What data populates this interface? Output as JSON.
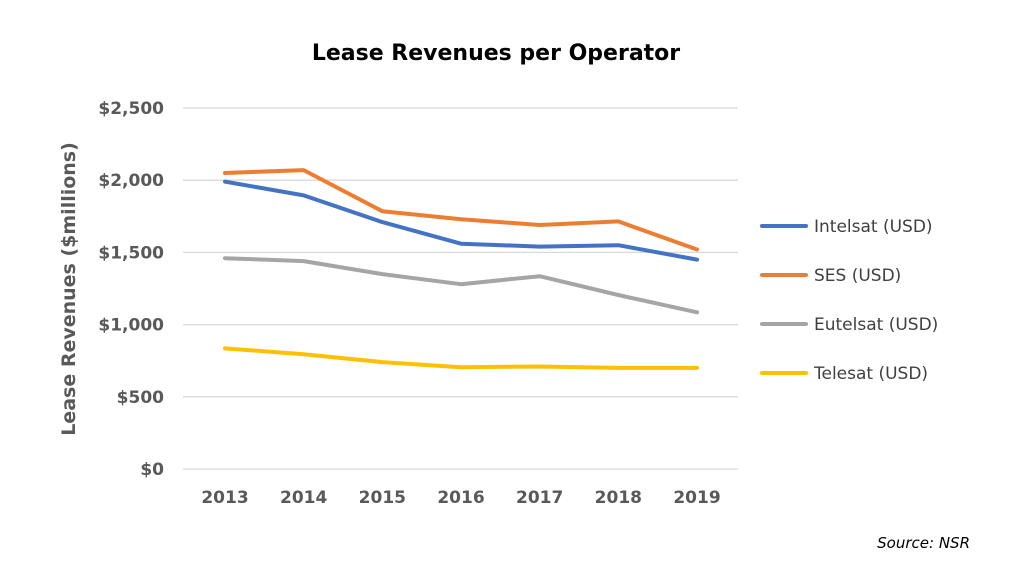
{
  "chart_data": {
    "type": "line",
    "title": "Lease Revenues per Operator",
    "ylabel": "Lease Revenues ($millions)",
    "xlabel": "",
    "x": [
      "2013",
      "2014",
      "2015",
      "2016",
      "2017",
      "2018",
      "2019"
    ],
    "ylim": [
      0,
      2500
    ],
    "yticks": [
      0,
      500,
      1000,
      1500,
      2000,
      2500
    ],
    "ytick_labels": [
      "$0",
      "$500",
      "$1,000",
      "$1,500",
      "$2,000",
      "$2,500"
    ],
    "grid": "horizontal",
    "legend_position": "right",
    "series": [
      {
        "name": "Intelsat (USD)",
        "color": "#4472C4",
        "values": [
          1990,
          1895,
          1710,
          1560,
          1540,
          1550,
          1450
        ]
      },
      {
        "name": "SES (USD)",
        "color": "#ED7D31",
        "values": [
          2050,
          2070,
          1785,
          1730,
          1690,
          1715,
          1520
        ]
      },
      {
        "name": "Eutelsat (USD)",
        "color": "#A5A5A5",
        "values": [
          1460,
          1440,
          1350,
          1280,
          1335,
          1205,
          1085
        ]
      },
      {
        "name": "Telesat (USD)",
        "color": "#FFC000",
        "values": [
          835,
          795,
          740,
          705,
          710,
          700,
          700
        ]
      }
    ]
  },
  "source_note": "Source: NSR"
}
